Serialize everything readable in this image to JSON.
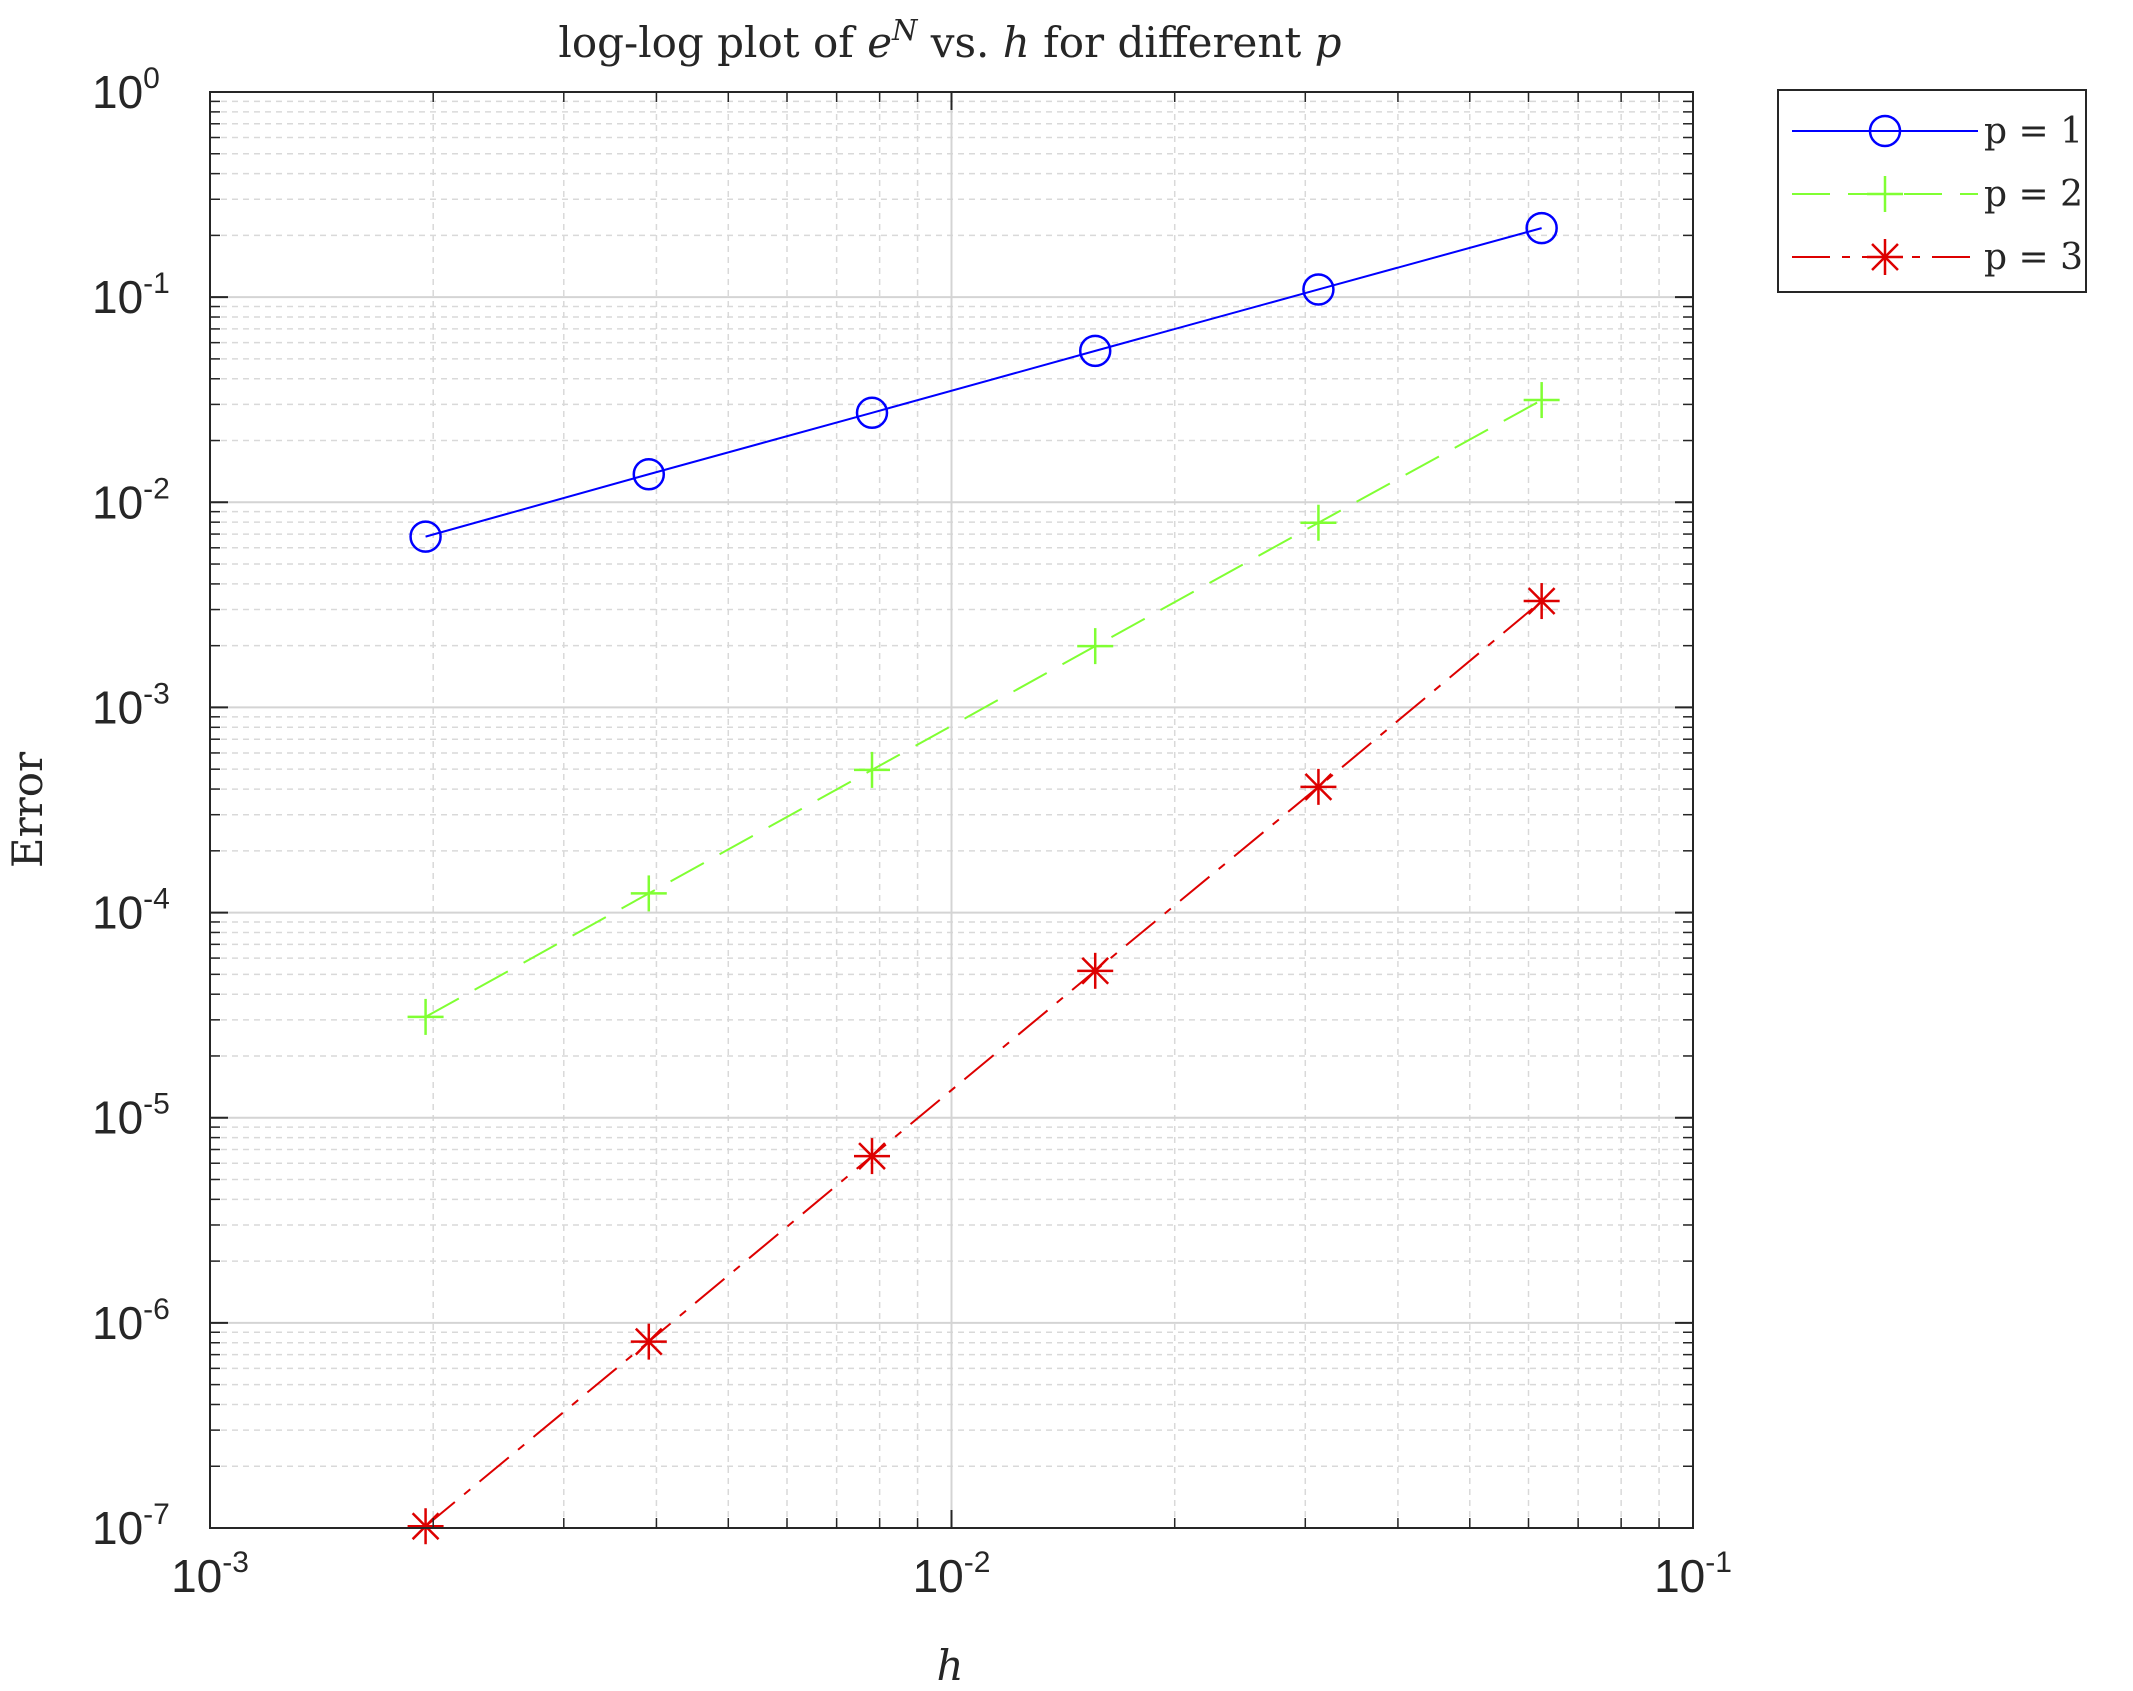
{
  "chart_data": {
    "type": "line",
    "title": {
      "prefix": "log-log plot of ",
      "var_e": "e",
      "var_e_sup": "N",
      "middle": " vs. ",
      "var_h": "h",
      "suffix": " for different ",
      "var_p": "p"
    },
    "xlabel": "h",
    "ylabel": "Error",
    "xscale": "log",
    "yscale": "log",
    "xlim": [
      0.001,
      0.1
    ],
    "ylim": [
      1e-07,
      1
    ],
    "grid": true,
    "minor_grid": true,
    "x": [
      0.001953125,
      0.00390625,
      0.0078125,
      0.015625,
      0.03125,
      0.0625
    ],
    "x_ticks": [
      {
        "value": 0.001,
        "base": "10",
        "exp": "-3"
      },
      {
        "value": 0.01,
        "base": "10",
        "exp": "-2"
      },
      {
        "value": 0.1,
        "base": "10",
        "exp": "-1"
      }
    ],
    "y_ticks": [
      {
        "value": 1,
        "base": "10",
        "exp": "0"
      },
      {
        "value": 0.1,
        "base": "10",
        "exp": "-1"
      },
      {
        "value": 0.01,
        "base": "10",
        "exp": "-2"
      },
      {
        "value": 0.001,
        "base": "10",
        "exp": "-3"
      },
      {
        "value": 0.0001,
        "base": "10",
        "exp": "-4"
      },
      {
        "value": 1e-05,
        "base": "10",
        "exp": "-5"
      },
      {
        "value": 1e-06,
        "base": "10",
        "exp": "-6"
      },
      {
        "value": 1e-07,
        "base": "10",
        "exp": "-7"
      }
    ],
    "series": [
      {
        "name": "p = 1",
        "color": "#0000ff",
        "line": "solid",
        "marker": "circle",
        "values": [
          0.0068,
          0.0137,
          0.0273,
          0.0547,
          0.109,
          0.217
        ]
      },
      {
        "name": "p = 2",
        "color": "#80ff33",
        "line": "dashed",
        "marker": "plus",
        "values": [
          3.1e-05,
          0.000124,
          0.000496,
          0.00199,
          0.00795,
          0.0315
        ]
      },
      {
        "name": "p = 3",
        "color": "#dd0000",
        "line": "dashdot",
        "marker": "asterisk",
        "values": [
          1.02e-07,
          8.1e-07,
          6.5e-06,
          5.2e-05,
          0.00041,
          0.0033
        ]
      }
    ],
    "legend_position": "outside-top-right"
  }
}
